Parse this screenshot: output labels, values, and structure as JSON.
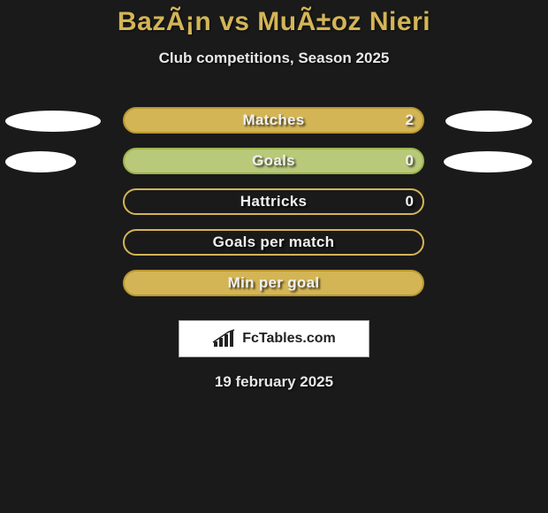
{
  "title": "BazÃ¡n vs MuÃ±oz Nieri",
  "subtitle": "Club competitions, Season 2025",
  "footer_date": "19 february 2025",
  "logo_text": "FcTables.com",
  "colors": {
    "background": "#1a1a1a",
    "title_color": "#d4b556",
    "text_light": "#e8e8e8",
    "ellipse": "#ffffff"
  },
  "stats": [
    {
      "label": "Matches",
      "value": "2",
      "fill": "#d4b556",
      "border": "#b89830",
      "left_ellipse_width": 108,
      "right_ellipse_width": 98,
      "show_value": true
    },
    {
      "label": "Goals",
      "value": "0",
      "fill": "#b9c97a",
      "border": "#9db34f",
      "left_ellipse_width": 80,
      "right_ellipse_width": 100,
      "show_value": true
    },
    {
      "label": "Hattricks",
      "value": "0",
      "fill": "transparent",
      "border": "#d4b556",
      "left_ellipse_width": 0,
      "right_ellipse_width": 0,
      "show_value": true
    },
    {
      "label": "Goals per match",
      "value": "",
      "fill": "transparent",
      "border": "#d4b556",
      "left_ellipse_width": 0,
      "right_ellipse_width": 0,
      "show_value": false
    },
    {
      "label": "Min per goal",
      "value": "",
      "fill": "#d4b556",
      "border": "#b89830",
      "left_ellipse_width": 0,
      "right_ellipse_width": 0,
      "show_value": false
    }
  ]
}
